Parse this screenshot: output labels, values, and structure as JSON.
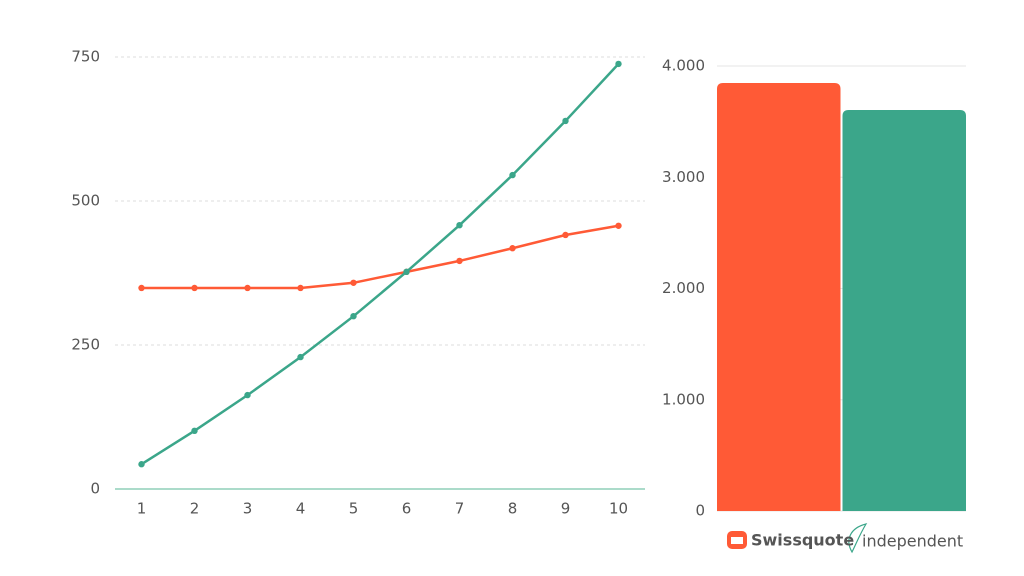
{
  "chart_data": [
    {
      "type": "line",
      "x": [
        1,
        2,
        3,
        4,
        5,
        6,
        7,
        8,
        9,
        10
      ],
      "xlim": [
        0.5,
        10.5
      ],
      "xticks": [
        1,
        2,
        3,
        4,
        5,
        6,
        7,
        8,
        9,
        10
      ],
      "ylim": [
        0,
        750
      ],
      "yticks": [
        0,
        250,
        500,
        750
      ],
      "grid": true,
      "series": [
        {
          "color": "#ff5a36",
          "values": [
            349,
            349,
            349,
            349,
            358,
            377,
            396,
            418,
            441,
            457
          ]
        },
        {
          "color": "#3ba68a",
          "values": [
            43,
            101,
            163,
            229,
            300,
            377,
            458,
            545,
            639,
            738
          ]
        }
      ]
    },
    {
      "type": "bar",
      "categories": [
        "Swissquote",
        "independent"
      ],
      "values": [
        3847,
        3604
      ],
      "colors": [
        "#ff5a36",
        "#3ba68a"
      ],
      "ylim": [
        0,
        4000
      ],
      "yticks": [
        0,
        {
          "value": 1000,
          "label": "1.000"
        },
        {
          "value": 2000,
          "label": "2.000"
        },
        {
          "value": 3000,
          "label": "3.000"
        },
        {
          "value": 4000,
          "label": "4.000"
        }
      ],
      "grid": true
    }
  ]
}
